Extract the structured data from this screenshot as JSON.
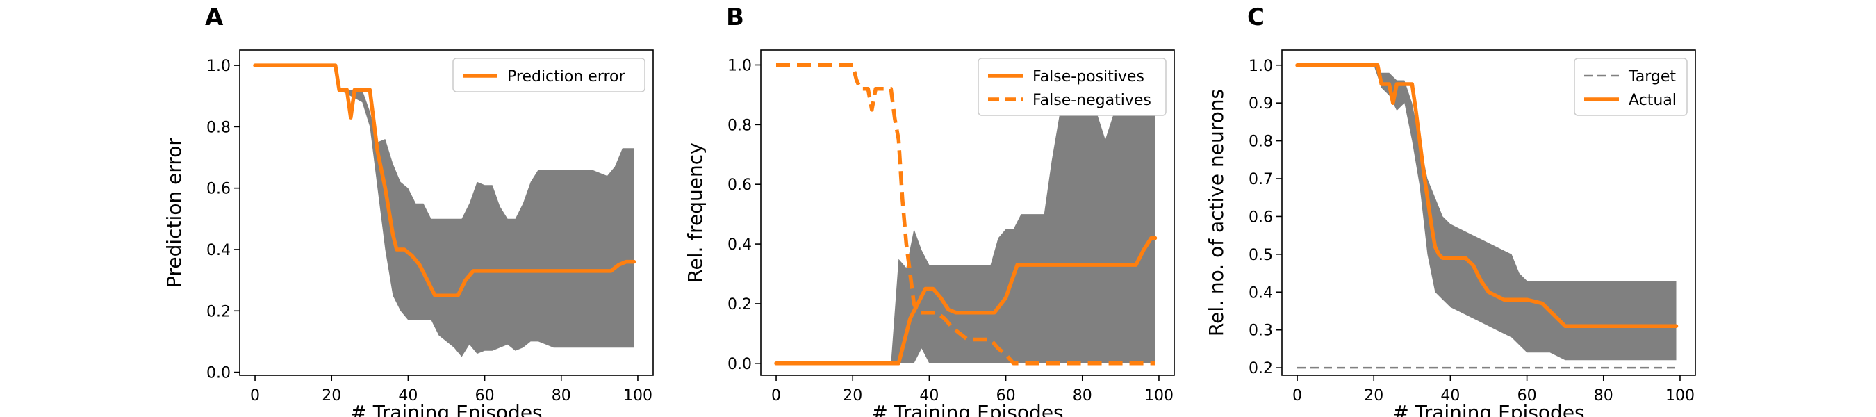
{
  "chart_data": [
    {
      "type": "line",
      "panel_label": "A",
      "xlabel": "# Training Episodes",
      "ylabel": "Prediction error",
      "xlim": [
        -4,
        104
      ],
      "ylim": [
        -0.01,
        1.05
      ],
      "xticks": [
        0,
        20,
        40,
        60,
        80,
        100
      ],
      "xtick_labels": [
        "0",
        "20",
        "40",
        "60",
        "80",
        "100"
      ],
      "yticks": [
        0.0,
        0.2,
        0.4,
        0.6,
        0.8,
        1.0
      ],
      "ytick_labels": [
        "0.0",
        "0.2",
        "0.4",
        "0.6",
        "0.8",
        "1.0"
      ],
      "grid": false,
      "legend": {
        "placement": "top-right",
        "entries": [
          "Prediction error"
        ]
      },
      "band": {
        "color": "#808080",
        "x": [
          0,
          20,
          22,
          25,
          28,
          30,
          32,
          34,
          36,
          38,
          40,
          42,
          44,
          46,
          48,
          50,
          52,
          54,
          56,
          58,
          60,
          62,
          64,
          66,
          68,
          70,
          72,
          74,
          76,
          78,
          80,
          84,
          88,
          92,
          94,
          96,
          99
        ],
        "upper": [
          1.0,
          1.0,
          0.92,
          0.92,
          0.92,
          0.85,
          0.75,
          0.76,
          0.68,
          0.62,
          0.6,
          0.55,
          0.55,
          0.5,
          0.5,
          0.5,
          0.5,
          0.5,
          0.55,
          0.62,
          0.61,
          0.61,
          0.54,
          0.5,
          0.5,
          0.55,
          0.62,
          0.66,
          0.66,
          0.66,
          0.66,
          0.66,
          0.66,
          0.64,
          0.67,
          0.73,
          0.73
        ],
        "lower": [
          1.0,
          1.0,
          0.92,
          0.9,
          0.88,
          0.8,
          0.6,
          0.4,
          0.25,
          0.2,
          0.17,
          0.17,
          0.17,
          0.17,
          0.12,
          0.1,
          0.08,
          0.05,
          0.09,
          0.06,
          0.07,
          0.07,
          0.08,
          0.09,
          0.07,
          0.08,
          0.1,
          0.1,
          0.09,
          0.08,
          0.08,
          0.08,
          0.08,
          0.08,
          0.08,
          0.08,
          0.08
        ]
      },
      "series": [
        {
          "name": "Prediction error",
          "color": "#ff7f0e",
          "dashed": false,
          "x": [
            0,
            21,
            22,
            24,
            25,
            26,
            28,
            30,
            31,
            32,
            34,
            36,
            37,
            39,
            41,
            43,
            45,
            47,
            50,
            53,
            55,
            57,
            60,
            66,
            70,
            80,
            90,
            93,
            95,
            97,
            99
          ],
          "y": [
            1.0,
            1.0,
            0.92,
            0.92,
            0.83,
            0.92,
            0.92,
            0.92,
            0.82,
            0.72,
            0.6,
            0.45,
            0.4,
            0.4,
            0.38,
            0.35,
            0.3,
            0.25,
            0.25,
            0.25,
            0.3,
            0.33,
            0.33,
            0.33,
            0.33,
            0.33,
            0.33,
            0.33,
            0.35,
            0.36,
            0.36
          ]
        }
      ]
    },
    {
      "type": "line",
      "panel_label": "B",
      "xlabel": "# Training Episodes",
      "ylabel": "Rel. frequency",
      "xlim": [
        -4,
        104
      ],
      "ylim": [
        -0.04,
        1.05
      ],
      "xticks": [
        0,
        20,
        40,
        60,
        80,
        100
      ],
      "xtick_labels": [
        "0",
        "20",
        "40",
        "60",
        "80",
        "100"
      ],
      "yticks": [
        0.0,
        0.2,
        0.4,
        0.6,
        0.8,
        1.0
      ],
      "ytick_labels": [
        "0.0",
        "0.2",
        "0.4",
        "0.6",
        "0.8",
        "1.0"
      ],
      "grid": false,
      "legend": {
        "placement": "top-right",
        "entries": [
          "False-positives",
          "False-negatives"
        ]
      },
      "band": {
        "color": "#808080",
        "x": [
          0,
          30,
          32,
          34,
          36,
          38,
          40,
          44,
          48,
          52,
          56,
          58,
          60,
          62,
          64,
          66,
          68,
          70,
          72,
          74,
          76,
          78,
          80,
          82,
          84,
          86,
          88,
          90,
          94,
          96,
          99
        ],
        "upper": [
          0.0,
          0.0,
          0.35,
          0.32,
          0.45,
          0.38,
          0.33,
          0.33,
          0.33,
          0.33,
          0.33,
          0.42,
          0.45,
          0.45,
          0.5,
          0.5,
          0.5,
          0.5,
          0.68,
          0.83,
          0.83,
          0.83,
          0.83,
          0.83,
          0.83,
          0.75,
          0.83,
          0.83,
          0.83,
          0.83,
          0.83
        ],
        "lower": [
          0.0,
          0.0,
          0.0,
          0.0,
          0.0,
          0.05,
          0.0,
          0.0,
          0.0,
          0.0,
          0.0,
          0.0,
          0.0,
          0.0,
          0.0,
          0.0,
          0.0,
          0.0,
          0.0,
          0.0,
          0.0,
          0.0,
          0.0,
          0.0,
          0.0,
          0.0,
          0.0,
          0.0,
          0.0,
          0.0,
          0.0
        ]
      },
      "series": [
        {
          "name": "False-positives",
          "color": "#ff7f0e",
          "dashed": false,
          "x": [
            0,
            32,
            33,
            35,
            37,
            39,
            41,
            43,
            45,
            47,
            50,
            55,
            57,
            60,
            63,
            70,
            80,
            90,
            92,
            94,
            96,
            98,
            99
          ],
          "y": [
            0.0,
            0.0,
            0.05,
            0.15,
            0.2,
            0.25,
            0.25,
            0.22,
            0.18,
            0.17,
            0.17,
            0.17,
            0.17,
            0.22,
            0.33,
            0.33,
            0.33,
            0.33,
            0.33,
            0.33,
            0.38,
            0.42,
            0.42
          ]
        },
        {
          "name": "False-negatives",
          "color": "#ff7f0e",
          "dashed": true,
          "x": [
            0,
            20,
            21,
            22,
            24,
            25,
            26,
            28,
            30,
            31,
            32,
            33,
            34,
            35,
            36,
            37,
            38,
            40,
            42,
            44,
            46,
            48,
            50,
            52,
            56,
            58,
            60,
            62,
            64,
            70,
            80,
            90,
            99
          ],
          "y": [
            1.0,
            1.0,
            0.95,
            0.92,
            0.92,
            0.85,
            0.92,
            0.92,
            0.92,
            0.82,
            0.75,
            0.55,
            0.4,
            0.3,
            0.2,
            0.17,
            0.17,
            0.17,
            0.17,
            0.15,
            0.12,
            0.1,
            0.08,
            0.08,
            0.08,
            0.05,
            0.03,
            0.0,
            0.0,
            0.0,
            0.0,
            0.0,
            0.0
          ]
        }
      ]
    },
    {
      "type": "line",
      "panel_label": "C",
      "xlabel": "# Training Episodes",
      "ylabel": "Rel. no. of active neurons",
      "xlim": [
        -4,
        104
      ],
      "ylim": [
        0.18,
        1.04
      ],
      "xticks": [
        0,
        20,
        40,
        60,
        80,
        100
      ],
      "xtick_labels": [
        "0",
        "20",
        "40",
        "60",
        "80",
        "100"
      ],
      "yticks": [
        0.2,
        0.3,
        0.4,
        0.5,
        0.6,
        0.7,
        0.8,
        0.9,
        1.0
      ],
      "ytick_labels": [
        "0.2",
        "0.3",
        "0.4",
        "0.5",
        "0.6",
        "0.7",
        "0.8",
        "0.9",
        "1.0"
      ],
      "grid": false,
      "legend": {
        "placement": "top-right",
        "entries": [
          "Target",
          "Actual"
        ]
      },
      "band": {
        "color": "#808080",
        "x": [
          0,
          20,
          22,
          24,
          26,
          28,
          30,
          32,
          34,
          36,
          38,
          40,
          44,
          48,
          52,
          56,
          58,
          60,
          62,
          64,
          66,
          68,
          70,
          72,
          80,
          90,
          99
        ],
        "upper": [
          1.0,
          1.0,
          0.98,
          0.98,
          0.96,
          0.96,
          0.9,
          0.8,
          0.7,
          0.65,
          0.6,
          0.58,
          0.56,
          0.54,
          0.52,
          0.5,
          0.45,
          0.43,
          0.43,
          0.43,
          0.43,
          0.43,
          0.43,
          0.43,
          0.43,
          0.43,
          0.43
        ],
        "lower": [
          1.0,
          1.0,
          0.94,
          0.92,
          0.88,
          0.9,
          0.8,
          0.68,
          0.5,
          0.4,
          0.38,
          0.36,
          0.34,
          0.32,
          0.3,
          0.28,
          0.26,
          0.24,
          0.24,
          0.24,
          0.24,
          0.23,
          0.22,
          0.22,
          0.22,
          0.22,
          0.22
        ]
      },
      "series": [
        {
          "name": "Target",
          "color": "#808080",
          "dashed": true,
          "thin": true,
          "x": [
            0,
            99
          ],
          "y": [
            0.2,
            0.2
          ]
        },
        {
          "name": "Actual",
          "color": "#ff7f0e",
          "dashed": false,
          "x": [
            0,
            21,
            22,
            24,
            25,
            26,
            28,
            30,
            31,
            32,
            33,
            34,
            35,
            36,
            37,
            38,
            40,
            44,
            46,
            48,
            50,
            52,
            54,
            56,
            60,
            64,
            66,
            68,
            70,
            80,
            90,
            99
          ],
          "y": [
            1.0,
            1.0,
            0.95,
            0.95,
            0.9,
            0.95,
            0.95,
            0.95,
            0.88,
            0.8,
            0.72,
            0.65,
            0.58,
            0.52,
            0.5,
            0.49,
            0.49,
            0.49,
            0.47,
            0.43,
            0.4,
            0.39,
            0.38,
            0.38,
            0.38,
            0.37,
            0.35,
            0.33,
            0.31,
            0.31,
            0.31,
            0.31
          ]
        }
      ]
    }
  ]
}
